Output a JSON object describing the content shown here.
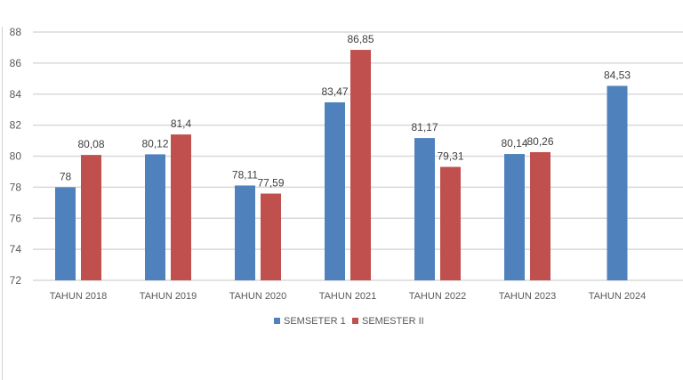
{
  "chart_data": {
    "type": "bar",
    "title": "",
    "xlabel": "",
    "ylabel": "",
    "ylim": [
      72,
      88
    ],
    "yticks": [
      72,
      74,
      76,
      78,
      80,
      82,
      84,
      86,
      88
    ],
    "grid": true,
    "legend_position": "bottom",
    "categories": [
      "TAHUN 2018",
      "TAHUN 2019",
      "TAHUN 2020",
      "TAHUN 2021",
      "TAHUN 2022",
      "TAHUN 2023",
      "TAHUN 2024"
    ],
    "series": [
      {
        "name": "SEMSETER 1",
        "color": "#4f81bd",
        "values": [
          78,
          80.12,
          78.11,
          83.47,
          81.17,
          80.14,
          84.53
        ],
        "labels": [
          "78",
          "80,12",
          "78,11",
          "83,47",
          "81,17",
          "80,14",
          "84,53"
        ]
      },
      {
        "name": "SEMESTER II",
        "color": "#c0504d",
        "values": [
          80.08,
          81.4,
          77.59,
          86.85,
          79.31,
          80.26,
          null
        ],
        "labels": [
          "80,08",
          "81,4",
          "77,59",
          "86,85",
          "79,31",
          "80,26",
          null
        ]
      }
    ]
  }
}
